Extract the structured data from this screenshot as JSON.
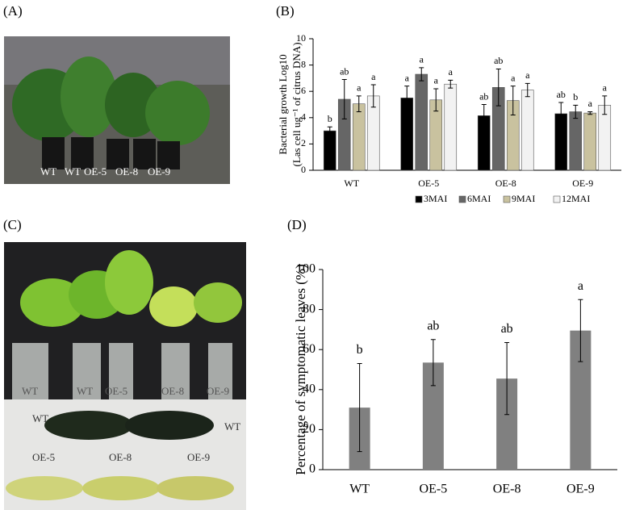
{
  "panel_labels": [
    "(A)",
    "(B)",
    "(C)",
    "(D)"
  ],
  "photo_a": {
    "labels": [
      "WT",
      "WT",
      "OE-5",
      "OE-8",
      "OE-9"
    ]
  },
  "photo_c": {
    "pot_labels": [
      "WT",
      "WT",
      "OE-5",
      "OE-8",
      "OE-9"
    ],
    "leaf_labels": [
      "WT",
      "WT",
      "OE-5",
      "OE-8",
      "OE-9"
    ]
  },
  "chart_data": [
    {
      "type": "bar",
      "ylabel": [
        "Bacterial growth Log10",
        "(Las cell ug⁻¹ of citrus DNA)"
      ],
      "categories": [
        "WT",
        "OE-5",
        "OE-8",
        "OE-9"
      ],
      "series": [
        {
          "name": "3MAI",
          "color": "#000000",
          "values": [
            3.0,
            5.5,
            4.15,
            4.3
          ],
          "errors": [
            0.3,
            0.9,
            0.85,
            0.85
          ],
          "labels": [
            "b",
            "a",
            "ab",
            "ab"
          ]
        },
        {
          "name": "6MAI",
          "color": "#666666",
          "values": [
            5.4,
            7.3,
            6.3,
            4.45
          ],
          "errors": [
            1.5,
            0.5,
            1.4,
            0.5
          ],
          "labels": [
            "ab",
            "a",
            "ab",
            "b"
          ]
        },
        {
          "name": "9MAI",
          "color": "#c9c29f",
          "values": [
            5.05,
            5.35,
            5.3,
            4.35
          ],
          "errors": [
            0.6,
            0.85,
            1.1,
            0.1
          ],
          "labels": [
            "a",
            "a",
            "a",
            "a"
          ]
        },
        {
          "name": "12MAI",
          "color": "#f2f2f2",
          "values": [
            5.65,
            6.55,
            6.1,
            4.95
          ],
          "errors": [
            0.85,
            0.3,
            0.5,
            0.7
          ],
          "labels": [
            "a",
            "a",
            "a",
            "a"
          ]
        }
      ],
      "ylim": [
        0,
        10
      ],
      "yticks": [
        0,
        2,
        4,
        6,
        8,
        10
      ],
      "legend": "bottom"
    },
    {
      "type": "bar",
      "ylabel": [
        "Percentage of symptomatic leaves (%)"
      ],
      "categories": [
        "WT",
        "OE-5",
        "OE-8",
        "OE-9"
      ],
      "values": [
        31,
        53.5,
        45.5,
        69.5
      ],
      "errors": [
        22,
        11.5,
        18,
        15.5
      ],
      "labels": [
        "b",
        "ab",
        "ab",
        "a"
      ],
      "color": "#808080",
      "ylim": [
        0,
        100
      ],
      "yticks": [
        0,
        20,
        40,
        60,
        80,
        100
      ]
    }
  ]
}
